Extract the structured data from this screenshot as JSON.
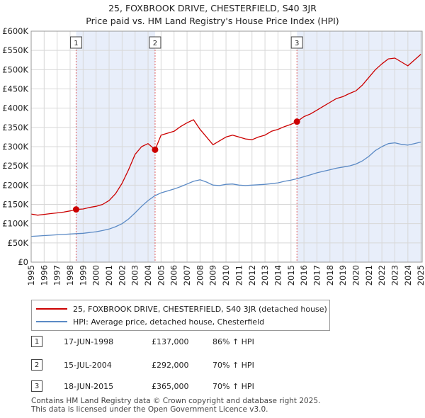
{
  "title_line1": "25, FOXBROOK DRIVE, CHESTERFIELD, S40 3JR",
  "title_line2": "Price paid vs. HM Land Registry's House Price Index (HPI)",
  "legend": {
    "property": "25, FOXBROOK DRIVE, CHESTERFIELD, S40 3JR (detached house)",
    "hpi": "HPI: Average price, detached house, Chesterfield"
  },
  "colors": {
    "property": "#cc0000",
    "hpi": "#5b8ac5",
    "shade": "#e8eefa",
    "vline": "#e06060"
  },
  "sales": [
    {
      "num": "1",
      "date": "17-JUN-1998",
      "price": "£137,000",
      "hpi": "86% ↑ HPI"
    },
    {
      "num": "2",
      "date": "15-JUL-2004",
      "price": "£292,000",
      "hpi": "70% ↑ HPI"
    },
    {
      "num": "3",
      "date": "18-JUN-2015",
      "price": "£365,000",
      "hpi": "70% ↑ HPI"
    }
  ],
  "footer": {
    "line1": "Contains HM Land Registry data © Crown copyright and database right 2025.",
    "line2": "This data is licensed under the Open Government Licence v3.0."
  },
  "chart_data": {
    "type": "line",
    "title": "25, FOXBROOK DRIVE, CHESTERFIELD, S40 3JR — Price paid vs. HM Land Registry's House Price Index (HPI)",
    "xlabel": "",
    "ylabel": "",
    "xlim": [
      1995,
      2025.1
    ],
    "ylim": [
      0,
      600000
    ],
    "x_ticks": [
      "1995",
      "1996",
      "1997",
      "1998",
      "1999",
      "2000",
      "2001",
      "2002",
      "2003",
      "2004",
      "2005",
      "2006",
      "2007",
      "2008",
      "2009",
      "2010",
      "2011",
      "2012",
      "2013",
      "2014",
      "2015",
      "2016",
      "2017",
      "2018",
      "2019",
      "2020",
      "2021",
      "2022",
      "2023",
      "2024",
      "2025"
    ],
    "y_ticks": [
      {
        "v": 0,
        "label": "£0"
      },
      {
        "v": 50000,
        "label": "£50K"
      },
      {
        "v": 100000,
        "label": "£100K"
      },
      {
        "v": 150000,
        "label": "£150K"
      },
      {
        "v": 200000,
        "label": "£200K"
      },
      {
        "v": 250000,
        "label": "£250K"
      },
      {
        "v": 300000,
        "label": "£300K"
      },
      {
        "v": 350000,
        "label": "£350K"
      },
      {
        "v": 400000,
        "label": "£400K"
      },
      {
        "v": 450000,
        "label": "£450K"
      },
      {
        "v": 500000,
        "label": "£500K"
      },
      {
        "v": 550000,
        "label": "£550K"
      },
      {
        "v": 600000,
        "label": "£600K"
      }
    ],
    "grid": true,
    "shaded_periods": [
      [
        1998.46,
        2004.54
      ],
      [
        2015.46,
        2025.1
      ]
    ],
    "series": [
      {
        "name": "25, FOXBROOK DRIVE, CHESTERFIELD, S40 3JR (detached house)",
        "x": [
          1995,
          1995.5,
          1996,
          1996.5,
          1997,
          1997.5,
          1998,
          1998.46,
          1999,
          1999.5,
          2000,
          2000.5,
          2001,
          2001.5,
          2002,
          2002.5,
          2003,
          2003.5,
          2004,
          2004.54,
          2005,
          2005.5,
          2006,
          2006.5,
          2007,
          2007.5,
          2008,
          2008.5,
          2009,
          2009.5,
          2010,
          2010.5,
          2011,
          2011.5,
          2012,
          2012.5,
          2013,
          2013.5,
          2014,
          2014.5,
          2015,
          2015.46,
          2016,
          2016.5,
          2017,
          2017.5,
          2018,
          2018.5,
          2019,
          2019.5,
          2020,
          2020.5,
          2021,
          2021.5,
          2022,
          2022.5,
          2023,
          2023.5,
          2024,
          2024.5,
          2025
        ],
        "values": [
          125000,
          122000,
          124000,
          126000,
          128000,
          130000,
          133000,
          137000,
          138000,
          142000,
          145000,
          150000,
          160000,
          178000,
          205000,
          240000,
          280000,
          300000,
          308000,
          292000,
          330000,
          335000,
          340000,
          352000,
          362000,
          370000,
          345000,
          325000,
          305000,
          315000,
          325000,
          330000,
          325000,
          320000,
          318000,
          325000,
          330000,
          340000,
          345000,
          352000,
          358000,
          365000,
          378000,
          385000,
          395000,
          405000,
          415000,
          425000,
          430000,
          438000,
          445000,
          460000,
          480000,
          500000,
          515000,
          528000,
          530000,
          520000,
          510000,
          525000,
          540000
        ]
      },
      {
        "name": "HPI: Average price, detached house, Chesterfield",
        "x": [
          1995,
          1995.5,
          1996,
          1996.5,
          1997,
          1997.5,
          1998,
          1998.5,
          1999,
          1999.5,
          2000,
          2000.5,
          2001,
          2001.5,
          2002,
          2002.5,
          2003,
          2003.5,
          2004,
          2004.5,
          2005,
          2005.5,
          2006,
          2006.5,
          2007,
          2007.5,
          2008,
          2008.5,
          2009,
          2009.5,
          2010,
          2010.5,
          2011,
          2011.5,
          2012,
          2012.5,
          2013,
          2013.5,
          2014,
          2014.5,
          2015,
          2015.5,
          2016,
          2016.5,
          2017,
          2017.5,
          2018,
          2018.5,
          2019,
          2019.5,
          2020,
          2020.5,
          2021,
          2021.5,
          2022,
          2022.5,
          2023,
          2023.5,
          2024,
          2024.5,
          2025
        ],
        "values": [
          67000,
          68000,
          69000,
          70000,
          71000,
          72000,
          73000,
          74000,
          75000,
          77000,
          79000,
          82000,
          86000,
          92000,
          100000,
          112000,
          128000,
          145000,
          160000,
          172000,
          180000,
          185000,
          190000,
          196000,
          203000,
          210000,
          214000,
          208000,
          200000,
          199000,
          202000,
          203000,
          200000,
          199000,
          200000,
          201000,
          202000,
          204000,
          206000,
          210000,
          213000,
          217000,
          222000,
          227000,
          232000,
          236000,
          240000,
          244000,
          247000,
          250000,
          255000,
          263000,
          275000,
          290000,
          300000,
          308000,
          310000,
          306000,
          304000,
          308000,
          312000
        ]
      }
    ],
    "annotations": [
      {
        "label": "1",
        "x": 1998.46,
        "y": 137000
      },
      {
        "label": "2",
        "x": 2004.54,
        "y": 292000
      },
      {
        "label": "3",
        "x": 2015.46,
        "y": 365000
      }
    ]
  }
}
